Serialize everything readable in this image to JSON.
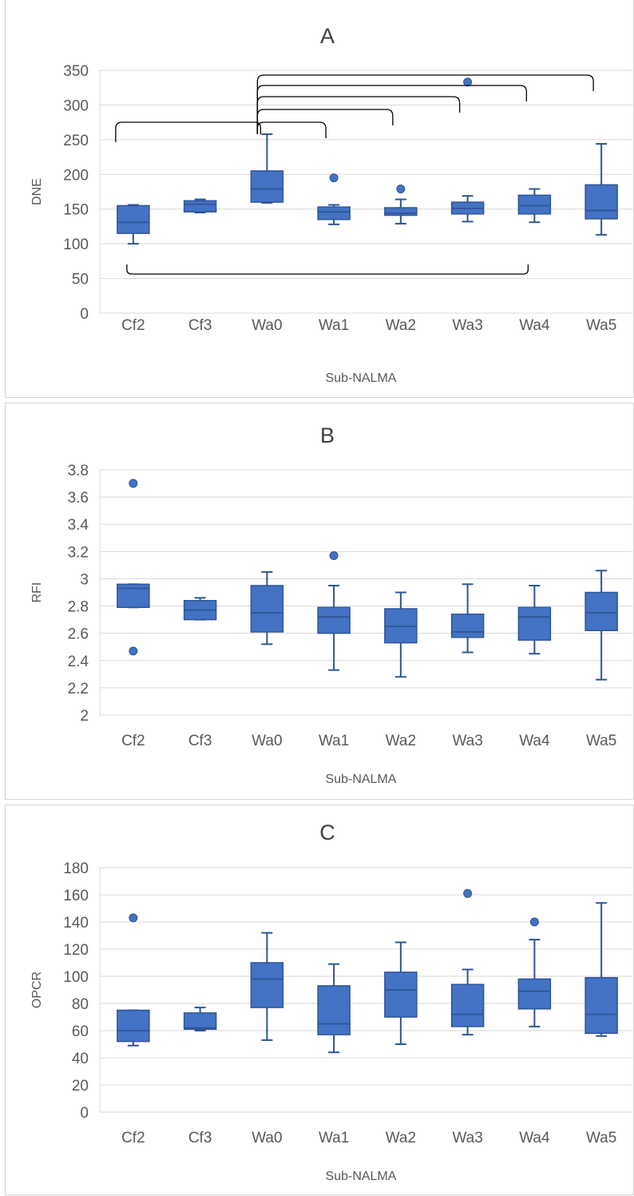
{
  "figure": {
    "colors": {
      "box_fill": "#4472c4",
      "box_stroke": "#2f5597",
      "grid": "#d9d9d9",
      "text": "#595959",
      "title": "#404040",
      "bracket": "#000000"
    }
  },
  "chart_data": [
    {
      "type": "box",
      "title": "A",
      "xlabel": "Sub-NALMA",
      "ylabel": "DNE",
      "ylim": [
        0,
        350
      ],
      "yticks": [
        "0",
        "50",
        "100",
        "150",
        "200",
        "250",
        "300",
        "350"
      ],
      "grid": true,
      "categories": [
        "Cf2",
        "Cf3",
        "Wa0",
        "Wa1",
        "Wa2",
        "Wa3",
        "Wa4",
        "Wa5"
      ],
      "boxes": [
        {
          "min": 100,
          "q1": 115,
          "median": 131,
          "q3": 155,
          "max": 156,
          "outliers": []
        },
        {
          "min": 145,
          "q1": 146,
          "median": 157,
          "q3": 162,
          "max": 164,
          "outliers": []
        },
        {
          "min": 159,
          "q1": 160,
          "median": 179,
          "q3": 205,
          "max": 258,
          "outliers": []
        },
        {
          "min": 128,
          "q1": 135,
          "median": 146,
          "q3": 153,
          "max": 156,
          "outliers": [
            195
          ]
        },
        {
          "min": 129,
          "q1": 141,
          "median": 144,
          "q3": 152,
          "max": 164,
          "outliers": [
            179
          ]
        },
        {
          "min": 132,
          "q1": 143,
          "median": 151,
          "q3": 160,
          "max": 169,
          "outliers": [
            333
          ]
        },
        {
          "min": 131,
          "q1": 143,
          "median": 155,
          "q3": 170,
          "max": 179,
          "outliers": []
        },
        {
          "min": 113,
          "q1": 136,
          "median": 148,
          "q3": 185,
          "max": 244,
          "outliers": []
        }
      ],
      "significance_brackets": [
        {
          "from": "Cf2",
          "to": "Wa0",
          "side": "top"
        },
        {
          "from": "Wa0",
          "to": "Wa1",
          "side": "top"
        },
        {
          "from": "Wa0",
          "to": "Wa2",
          "side": "top"
        },
        {
          "from": "Wa0",
          "to": "Wa3",
          "side": "top"
        },
        {
          "from": "Wa0",
          "to": "Wa4",
          "side": "top"
        },
        {
          "from": "Wa0",
          "to": "Wa5",
          "side": "top"
        },
        {
          "from": "Cf2",
          "to": "Wa4",
          "side": "bottom"
        }
      ]
    },
    {
      "type": "box",
      "title": "B",
      "xlabel": "Sub-NALMA",
      "ylabel": "RFI",
      "ylim": [
        2,
        3.8
      ],
      "yticks": [
        "2",
        "2.2",
        "2.4",
        "2.6",
        "2.8",
        "3",
        "3.2",
        "3.4",
        "3.6",
        "3.8"
      ],
      "grid": true,
      "categories": [
        "Cf2",
        "Cf3",
        "Wa0",
        "Wa1",
        "Wa2",
        "Wa3",
        "Wa4",
        "Wa5"
      ],
      "boxes": [
        {
          "min": 2.79,
          "q1": 2.79,
          "median": 2.93,
          "q3": 2.96,
          "max": 2.96,
          "outliers": [
            3.7,
            2.47
          ]
        },
        {
          "min": 2.7,
          "q1": 2.7,
          "median": 2.77,
          "q3": 2.84,
          "max": 2.86,
          "outliers": []
        },
        {
          "min": 2.52,
          "q1": 2.61,
          "median": 2.75,
          "q3": 2.95,
          "max": 3.05,
          "outliers": []
        },
        {
          "min": 2.33,
          "q1": 2.6,
          "median": 2.72,
          "q3": 2.79,
          "max": 2.95,
          "outliers": [
            3.17
          ]
        },
        {
          "min": 2.28,
          "q1": 2.53,
          "median": 2.65,
          "q3": 2.78,
          "max": 2.9,
          "outliers": []
        },
        {
          "min": 2.46,
          "q1": 2.57,
          "median": 2.61,
          "q3": 2.74,
          "max": 2.96,
          "outliers": []
        },
        {
          "min": 2.45,
          "q1": 2.55,
          "median": 2.72,
          "q3": 2.79,
          "max": 2.95,
          "outliers": []
        },
        {
          "min": 2.26,
          "q1": 2.62,
          "median": 2.75,
          "q3": 2.9,
          "max": 3.06,
          "outliers": []
        }
      ]
    },
    {
      "type": "box",
      "title": "C",
      "xlabel": "Sub-NALMA",
      "ylabel": "OPCR",
      "ylim": [
        0,
        180
      ],
      "yticks": [
        "0",
        "20",
        "40",
        "60",
        "80",
        "100",
        "120",
        "140",
        "160",
        "180"
      ],
      "grid": true,
      "categories": [
        "Cf2",
        "Cf3",
        "Wa0",
        "Wa1",
        "Wa2",
        "Wa3",
        "Wa4",
        "Wa5"
      ],
      "boxes": [
        {
          "min": 49,
          "q1": 52,
          "median": 60,
          "q3": 75,
          "max": 75,
          "outliers": [
            143
          ]
        },
        {
          "min": 60,
          "q1": 61,
          "median": 62,
          "q3": 73,
          "max": 77,
          "outliers": []
        },
        {
          "min": 53,
          "q1": 77,
          "median": 98,
          "q3": 110,
          "max": 132,
          "outliers": []
        },
        {
          "min": 44,
          "q1": 57,
          "median": 65,
          "q3": 93,
          "max": 109,
          "outliers": []
        },
        {
          "min": 50,
          "q1": 70,
          "median": 90,
          "q3": 103,
          "max": 125,
          "outliers": []
        },
        {
          "min": 57,
          "q1": 63,
          "median": 72,
          "q3": 94,
          "max": 105,
          "outliers": [
            161
          ]
        },
        {
          "min": 63,
          "q1": 76,
          "median": 89,
          "q3": 98,
          "max": 127,
          "outliers": [
            140
          ]
        },
        {
          "min": 56,
          "q1": 58,
          "median": 72,
          "q3": 99,
          "max": 154,
          "outliers": []
        }
      ]
    }
  ]
}
